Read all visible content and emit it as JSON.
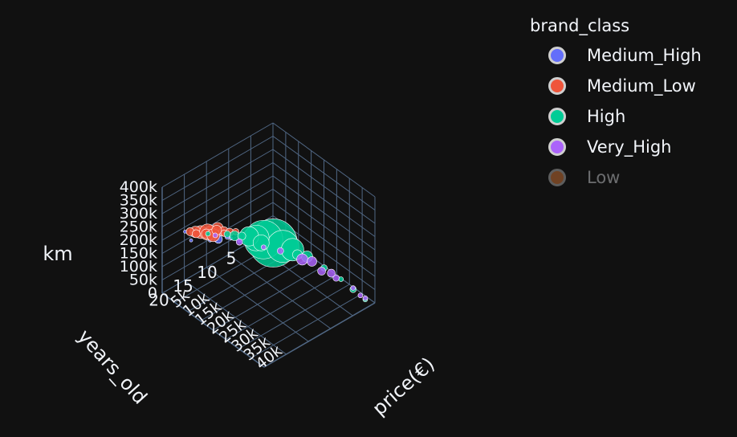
{
  "chart_data": {
    "type": "scatter",
    "mode": "3d",
    "axes": {
      "x": {
        "title": "price(€)",
        "ticks": [
          "5k",
          "10k",
          "15k",
          "20k",
          "25k",
          "30k",
          "35k",
          "40k"
        ],
        "range": [
          0,
          42000
        ]
      },
      "y": {
        "title": "years_old",
        "ticks": [
          "0",
          "5",
          "10",
          "15",
          "20"
        ],
        "range": [
          0,
          23
        ]
      },
      "z": {
        "title": "km",
        "ticks": [
          "0",
          "50k",
          "100k",
          "150k",
          "200k",
          "250k",
          "300k",
          "350k",
          "400k"
        ],
        "range": [
          0,
          400000
        ]
      }
    },
    "legend": {
      "title": "brand_class",
      "placement": "top-right",
      "items": [
        {
          "name": "Medium_High",
          "color": "#636efa",
          "visible": true
        },
        {
          "name": "Medium_Low",
          "color": "#ef553b",
          "visible": true
        },
        {
          "name": "High",
          "color": "#00cc96",
          "visible": true
        },
        {
          "name": "Very_High",
          "color": "#ab63fa",
          "visible": true
        },
        {
          "name": "Low",
          "color": "#ff8c40",
          "visible": false
        }
      ]
    },
    "series": [
      {
        "name": "Medium_High",
        "points": [
          [
            3000,
            14,
            150000,
            3
          ],
          [
            4200,
            13,
            165000,
            2
          ],
          [
            2500,
            16,
            180000,
            4
          ],
          [
            3800,
            15,
            140000,
            2
          ],
          [
            5000,
            12,
            130000,
            3
          ],
          [
            2000,
            18,
            160000,
            2
          ],
          [
            3300,
            13,
            120000,
            5
          ],
          [
            4500,
            11,
            110000,
            2
          ],
          [
            2800,
            15,
            175000,
            3
          ],
          [
            6000,
            10,
            100000,
            2
          ],
          [
            3600,
            14,
            145000,
            2
          ],
          [
            1500,
            19,
            200000,
            2
          ],
          [
            3100,
            12,
            135000,
            4
          ],
          [
            4800,
            13,
            155000,
            2
          ]
        ]
      },
      {
        "name": "Medium_Low",
        "points": [
          [
            2500,
            14,
            150000,
            9
          ],
          [
            3000,
            13,
            160000,
            7
          ],
          [
            2000,
            16,
            170000,
            8
          ],
          [
            3500,
            12,
            140000,
            6
          ],
          [
            1800,
            17,
            180000,
            7
          ],
          [
            2800,
            15,
            165000,
            10
          ],
          [
            4000,
            11,
            130000,
            5
          ],
          [
            2300,
            15,
            155000,
            6
          ],
          [
            3200,
            14,
            145000,
            8
          ],
          [
            1600,
            18,
            190000,
            5
          ],
          [
            3700,
            12,
            135000,
            4
          ],
          [
            2600,
            13,
            150000,
            6
          ],
          [
            4500,
            10,
            125000,
            4
          ],
          [
            2100,
            17,
            175000,
            5
          ],
          [
            6000,
            8,
            100000,
            4
          ]
        ]
      },
      {
        "name": "High",
        "points": [
          [
            12000,
            6,
            90000,
            30
          ],
          [
            10000,
            7,
            100000,
            24
          ],
          [
            14000,
            5,
            80000,
            20
          ],
          [
            9000,
            8,
            110000,
            16
          ],
          [
            8000,
            9,
            120000,
            12
          ],
          [
            16000,
            4,
            70000,
            14
          ],
          [
            11000,
            8,
            105000,
            10
          ],
          [
            6000,
            11,
            130000,
            6
          ],
          [
            20000,
            3,
            60000,
            7
          ],
          [
            25000,
            2,
            40000,
            4
          ],
          [
            30000,
            1,
            20000,
            3
          ],
          [
            35000,
            1,
            15000,
            4
          ],
          [
            40000,
            1,
            10000,
            3
          ],
          [
            18000,
            4,
            65000,
            6
          ],
          [
            5000,
            12,
            140000,
            4
          ],
          [
            3000,
            15,
            160000,
            3
          ],
          [
            7000,
            10,
            125000,
            5
          ]
        ]
      },
      {
        "name": "Very_High",
        "points": [
          [
            20000,
            4,
            60000,
            7
          ],
          [
            22000,
            3,
            55000,
            6
          ],
          [
            26000,
            3,
            45000,
            5
          ],
          [
            30000,
            2,
            35000,
            4
          ],
          [
            35000,
            1,
            20000,
            3
          ],
          [
            40000,
            1,
            15000,
            3
          ],
          [
            15000,
            6,
            80000,
            4
          ],
          [
            12000,
            8,
            95000,
            3
          ],
          [
            8000,
            11,
            120000,
            4
          ],
          [
            4000,
            14,
            150000,
            3
          ],
          [
            38000,
            1,
            12000,
            3
          ],
          [
            28000,
            2,
            40000,
            5
          ]
        ]
      }
    ]
  }
}
